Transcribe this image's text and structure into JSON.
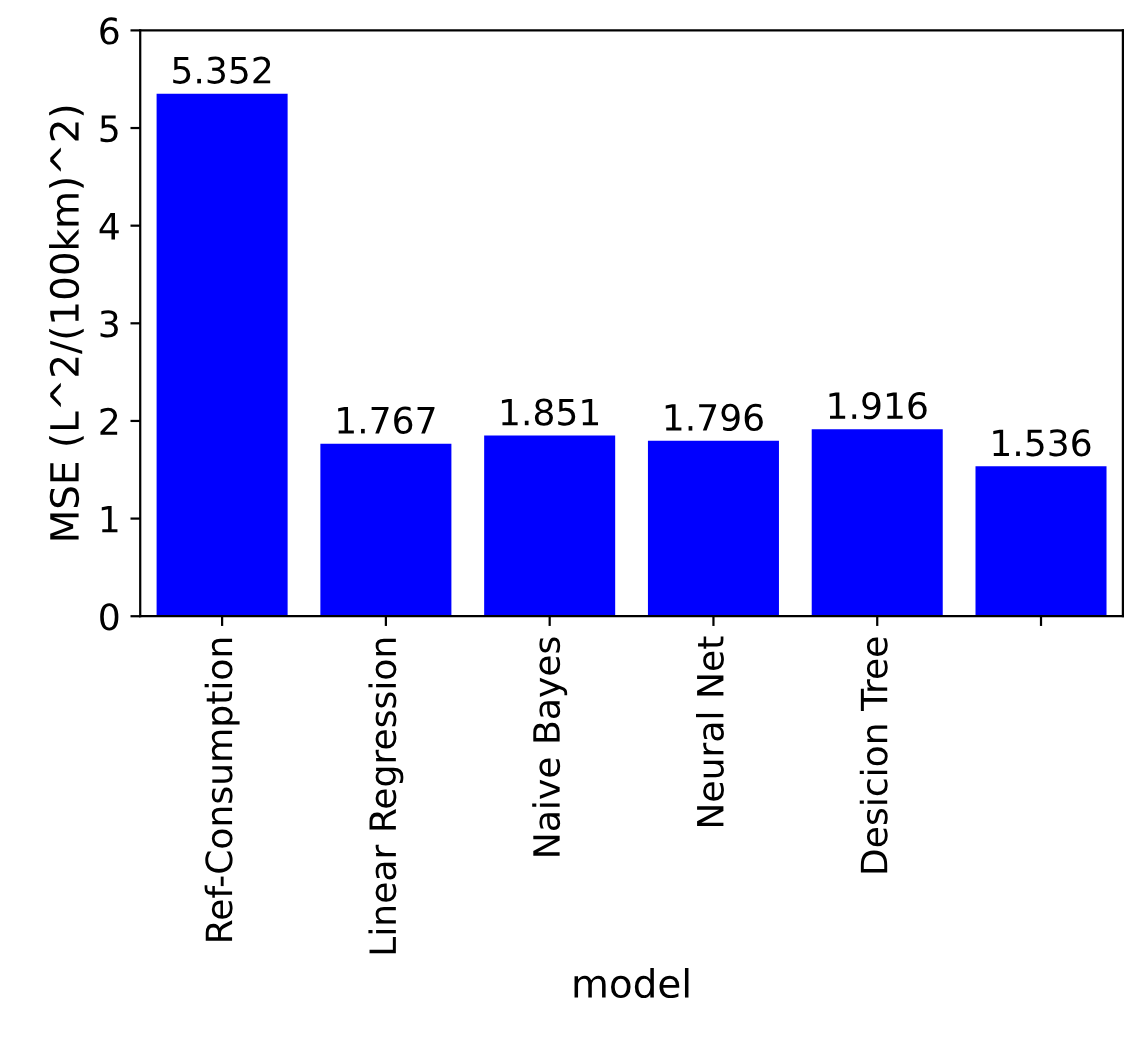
{
  "chart_data": {
    "type": "bar",
    "xlabel": "model",
    "ylabel": "MSE (L^2/(100km)^2)",
    "categories": [
      "Ref-Consumption",
      "Linear Regression",
      "Naive Bayes",
      "Neural Net",
      "Desicion Tree",
      null
    ],
    "values": [
      5.352,
      1.767,
      1.851,
      1.796,
      1.916,
      1.536
    ],
    "color": "#0000ff",
    "ylim": [
      0,
      6
    ],
    "yticks": [
      0,
      1,
      2,
      3,
      4,
      5,
      6
    ],
    "data_labels": true,
    "grid": false
  }
}
